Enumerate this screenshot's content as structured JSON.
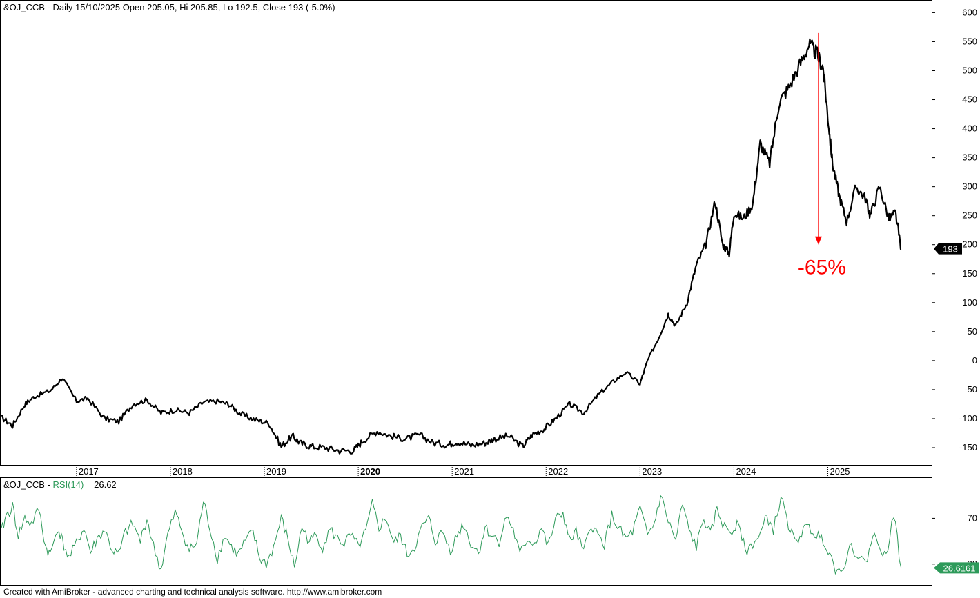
{
  "header": {
    "price_title": "&OJ_CCB - Daily 15/10/2025 Open 205.05, Hi 205.85, Lo 192.5, Close 193 (-5.0%)",
    "rsi_symbol": "&OJ_CCB - ",
    "rsi_name": "RSI(14)",
    "rsi_eq": " = 26.62"
  },
  "footer_text": "Created with AmiBroker - advanced charting and technical analysis software. http://www.amibroker.com",
  "annotation": {
    "text": "-65%",
    "color": "#ff0000"
  },
  "colors": {
    "price": "#000000",
    "rsi": "#2e9a5a",
    "arrow": "#ff0000",
    "grid": "#000000"
  },
  "chart_data": [
    {
      "type": "line",
      "name": "price",
      "ylim": [
        -175,
        610
      ],
      "y_ticks": [
        600,
        550,
        500,
        450,
        400,
        350,
        300,
        250,
        200,
        150,
        100,
        50,
        0,
        -50,
        -100,
        -150
      ],
      "y_tick_labels": [
        "600",
        "550",
        "500",
        "450",
        "400",
        "350",
        "300",
        "250",
        "200",
        "150",
        "100",
        "50",
        "0",
        "-50",
        "-100",
        "-150"
      ],
      "x_range": [
        2016.2,
        2025.9
      ],
      "x_ticks": [
        2017,
        2018,
        2019,
        2020,
        2021,
        2022,
        2023,
        2024,
        2025
      ],
      "x_tick_labels": [
        "2017",
        "2018",
        "2019",
        "2020",
        "2021",
        "2022",
        "2023",
        "2024",
        "2025"
      ],
      "x_tick_bold": [
        false,
        false,
        false,
        true,
        false,
        false,
        false,
        false,
        false
      ],
      "last_value_label": "193",
      "x": [
        2016.2,
        2016.32,
        2016.45,
        2016.55,
        2016.72,
        2016.85,
        2017.0,
        2017.12,
        2017.3,
        2017.45,
        2017.6,
        2017.75,
        2017.9,
        2018.05,
        2018.2,
        2018.35,
        2018.5,
        2018.62,
        2018.75,
        2018.9,
        2019.05,
        2019.18,
        2019.3,
        2019.38,
        2019.5,
        2019.65,
        2019.8,
        2019.95,
        2020.05,
        2020.2,
        2020.35,
        2020.5,
        2020.65,
        2020.8,
        2020.95,
        2021.05,
        2021.2,
        2021.35,
        2021.45,
        2021.6,
        2021.75,
        2021.85,
        2021.98,
        2022.1,
        2022.25,
        2022.4,
        2022.55,
        2022.7,
        2022.85,
        2023.0,
        2023.08,
        2023.2,
        2023.3,
        2023.38,
        2023.5,
        2023.6,
        2023.7,
        2023.8,
        2023.88,
        2023.95,
        2024.0,
        2024.1,
        2024.2,
        2024.28,
        2024.38,
        2024.48,
        2024.58,
        2024.7,
        2024.8,
        2024.88,
        2024.95,
        2025.0,
        2025.05,
        2025.12,
        2025.2,
        2025.3,
        2025.4,
        2025.45,
        2025.55,
        2025.65,
        2025.72,
        2025.78
      ],
      "values": [
        -98,
        -112,
        -75,
        -62,
        -52,
        -30,
        -70,
        -65,
        -100,
        -105,
        -75,
        -68,
        -90,
        -85,
        -90,
        -72,
        -70,
        -75,
        -92,
        -102,
        -108,
        -148,
        -130,
        -142,
        -148,
        -150,
        -155,
        -155,
        -138,
        -122,
        -130,
        -135,
        -128,
        -142,
        -145,
        -140,
        -146,
        -142,
        -135,
        -130,
        -148,
        -128,
        -118,
        -100,
        -75,
        -90,
        -60,
        -38,
        -20,
        -40,
        0,
        40,
        80,
        60,
        100,
        165,
        200,
        275,
        200,
        185,
        255,
        245,
        270,
        375,
        340,
        445,
        470,
        510,
        545,
        530,
        505,
        420,
        340,
        285,
        240,
        300,
        280,
        250,
        300,
        245,
        255,
        193
      ],
      "drawdown_from_value": 565,
      "drawdown_to_value": 200,
      "drawdown_x": 2024.9
    },
    {
      "type": "line",
      "name": "rsi",
      "ylim": [
        13,
        104
      ],
      "y_ticks": [
        70,
        30
      ],
      "y_tick_labels": [
        "70",
        "30"
      ],
      "last_value_label": "26.6161",
      "x": [
        2016.2,
        2016.25,
        2016.32,
        2016.38,
        2016.45,
        2016.52,
        2016.6,
        2016.67,
        2016.72,
        2016.8,
        2016.85,
        2016.92,
        2017.0,
        2017.08,
        2017.15,
        2017.22,
        2017.3,
        2017.38,
        2017.45,
        2017.52,
        2017.6,
        2017.68,
        2017.75,
        2017.82,
        2017.9,
        2017.97,
        2018.05,
        2018.12,
        2018.2,
        2018.28,
        2018.35,
        2018.42,
        2018.5,
        2018.58,
        2018.65,
        2018.72,
        2018.8,
        2018.88,
        2018.95,
        2019.02,
        2019.1,
        2019.18,
        2019.25,
        2019.32,
        2019.4,
        2019.48,
        2019.55,
        2019.62,
        2019.7,
        2019.78,
        2019.85,
        2019.92,
        2020.0,
        2020.08,
        2020.15,
        2020.22,
        2020.3,
        2020.38,
        2020.45,
        2020.52,
        2020.6,
        2020.68,
        2020.75,
        2020.82,
        2020.9,
        2020.98,
        2021.05,
        2021.12,
        2021.2,
        2021.28,
        2021.35,
        2021.42,
        2021.5,
        2021.58,
        2021.65,
        2021.72,
        2021.8,
        2021.88,
        2021.95,
        2022.02,
        2022.1,
        2022.18,
        2022.25,
        2022.32,
        2022.4,
        2022.48,
        2022.55,
        2022.62,
        2022.7,
        2022.78,
        2022.85,
        2022.92,
        2023.0,
        2023.08,
        2023.15,
        2023.22,
        2023.3,
        2023.38,
        2023.45,
        2023.52,
        2023.6,
        2023.68,
        2023.75,
        2023.82,
        2023.9,
        2023.98,
        2024.05,
        2024.12,
        2024.2,
        2024.28,
        2024.35,
        2024.42,
        2024.5,
        2024.58,
        2024.65,
        2024.72,
        2024.8,
        2024.88,
        2024.95,
        2025.02,
        2025.1,
        2025.18,
        2025.25,
        2025.32,
        2025.4,
        2025.48,
        2025.55,
        2025.62,
        2025.7,
        2025.78
      ],
      "values": [
        58,
        72,
        80,
        55,
        70,
        65,
        78,
        45,
        38,
        62,
        50,
        35,
        48,
        62,
        40,
        52,
        60,
        42,
        38,
        58,
        65,
        50,
        70,
        45,
        25,
        55,
        75,
        60,
        42,
        48,
        85,
        62,
        35,
        55,
        45,
        38,
        50,
        58,
        35,
        30,
        45,
        70,
        52,
        28,
        62,
        50,
        55,
        45,
        60,
        52,
        48,
        55,
        45,
        58,
        82,
        62,
        70,
        48,
        55,
        38,
        45,
        62,
        70,
        50,
        58,
        42,
        55,
        65,
        48,
        40,
        62,
        55,
        50,
        72,
        60,
        38,
        52,
        48,
        62,
        45,
        68,
        75,
        50,
        58,
        40,
        65,
        55,
        48,
        72,
        60,
        52,
        58,
        78,
        55,
        65,
        90,
        68,
        50,
        82,
        60,
        45,
        70,
        55,
        78,
        62,
        58,
        70,
        40,
        48,
        55,
        72,
        60,
        88,
        65,
        48,
        58,
        62,
        55,
        52,
        40,
        22,
        32,
        45,
        38,
        30,
        55,
        48,
        35,
        75,
        26.6
      ]
    }
  ]
}
